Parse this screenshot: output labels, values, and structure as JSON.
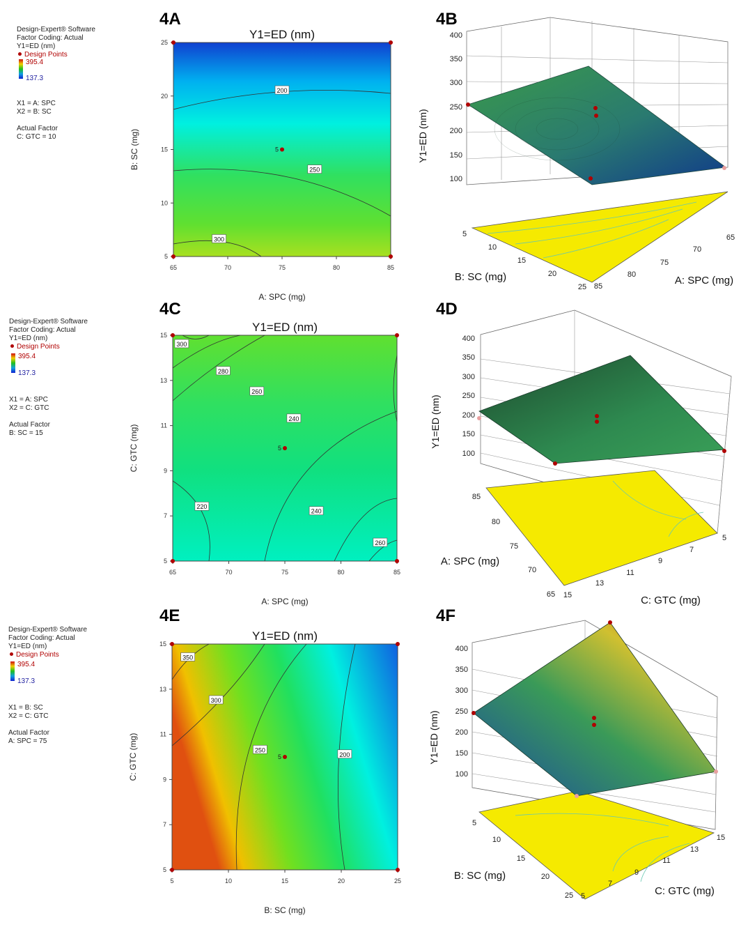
{
  "legends": [
    {
      "software": "Design-Expert® Software",
      "coding": "Factor Coding: Actual",
      "response": "Y1=ED (nm)",
      "design_points": "Design Points",
      "max": "395.4",
      "min": "137.3",
      "x1": "X1 = A: SPC",
      "x2": "X2 = B: SC",
      "actual_factor_title": "Actual Factor",
      "actual_factor": "C: GTC = 10"
    },
    {
      "software": "Design-Expert® Software",
      "coding": "Factor Coding: Actual",
      "response": "Y1=ED (nm)",
      "design_points": "Design Points",
      "max": "395.4",
      "min": "137.3",
      "x1": "X1 = A: SPC",
      "x2": "X2 = C: GTC",
      "actual_factor_title": "Actual Factor",
      "actual_factor": "B: SC = 15"
    },
    {
      "software": "Design-Expert® Software",
      "coding": "Factor Coding: Actual",
      "response": "Y1=ED (nm)",
      "design_points": "Design Points",
      "max": "395.4",
      "min": "137.3",
      "x1": "X1 = B: SC",
      "x2": "X2 = C: GTC",
      "actual_factor_title": "Actual Factor",
      "actual_factor": "A: SPC = 75"
    }
  ],
  "panels": {
    "a": "4A",
    "b": "4B",
    "c": "4C",
    "d": "4D",
    "e": "4E",
    "f": "4F"
  },
  "chart_data": [
    {
      "id": "4A",
      "type": "contour",
      "title": "Y1=ED (nm)",
      "xlabel": "A: SPC (mg)",
      "ylabel": "B: SC (mg)",
      "xlim": [
        65,
        85
      ],
      "ylim": [
        5,
        25
      ],
      "xticks": [
        "65",
        "70",
        "75",
        "80",
        "85"
      ],
      "yticks": [
        "5",
        "10",
        "15",
        "20",
        "25"
      ],
      "contour_labels": [
        {
          "text": "200",
          "x": 75,
          "y": 20.5
        },
        {
          "text": "250",
          "x": 78,
          "y": 13.1
        },
        {
          "text": "300",
          "x": 69.2,
          "y": 6.6
        }
      ],
      "center_label": "5",
      "design_points": [
        [
          65,
          5
        ],
        [
          65,
          25
        ],
        [
          85,
          5
        ],
        [
          85,
          25
        ],
        [
          75,
          15
        ]
      ]
    },
    {
      "id": "4B",
      "type": "surface3d",
      "zlabel": "Y1=ED (nm)",
      "xlabel": "A: SPC (mg)",
      "ylabel": "B: SC (mg)",
      "zticks": [
        "100",
        "150",
        "200",
        "250",
        "300",
        "350",
        "400"
      ],
      "xticks": [
        "85",
        "80",
        "75",
        "70",
        "65"
      ],
      "yticks": [
        "5",
        "10",
        "15",
        "20",
        "25"
      ]
    },
    {
      "id": "4C",
      "type": "contour",
      "title": "Y1=ED (nm)",
      "xlabel": "A: SPC (mg)",
      "ylabel": "C: GTC (mg)",
      "xlim": [
        65,
        85
      ],
      "ylim": [
        5,
        15
      ],
      "xticks": [
        "65",
        "70",
        "75",
        "80",
        "85"
      ],
      "yticks": [
        "5",
        "7",
        "9",
        "11",
        "13",
        "15"
      ],
      "contour_labels": [
        {
          "text": "300",
          "x": 65.8,
          "y": 14.6
        },
        {
          "text": "280",
          "x": 69.5,
          "y": 13.4
        },
        {
          "text": "260",
          "x": 72.5,
          "y": 12.5
        },
        {
          "text": "240",
          "x": 75.8,
          "y": 11.3
        },
        {
          "text": "220",
          "x": 67.6,
          "y": 7.4
        },
        {
          "text": "240",
          "x": 77.8,
          "y": 7.2
        },
        {
          "text": "260",
          "x": 83.5,
          "y": 5.8
        }
      ],
      "center_label": "5",
      "design_points": [
        [
          65,
          5
        ],
        [
          65,
          15
        ],
        [
          85,
          5
        ],
        [
          85,
          15
        ],
        [
          75,
          10
        ]
      ]
    },
    {
      "id": "4D",
      "type": "surface3d",
      "zlabel": "Y1=ED (nm)",
      "xlabel": "C: GTC (mg)",
      "ylabel": "A: SPC (mg)",
      "zticks": [
        "100",
        "150",
        "200",
        "250",
        "300",
        "350",
        "400"
      ],
      "xticks": [
        "15",
        "13",
        "11",
        "9",
        "7",
        "5"
      ],
      "yticks": [
        "85",
        "80",
        "75",
        "70",
        "65"
      ]
    },
    {
      "id": "4E",
      "type": "contour",
      "title": "Y1=ED (nm)",
      "xlabel": "B: SC (mg)",
      "ylabel": "C: GTC (mg)",
      "xlim": [
        5,
        25
      ],
      "ylim": [
        5,
        15
      ],
      "xticks": [
        "5",
        "10",
        "15",
        "20",
        "25"
      ],
      "yticks": [
        "5",
        "7",
        "9",
        "11",
        "13",
        "15"
      ],
      "contour_labels": [
        {
          "text": "350",
          "x": 6.4,
          "y": 14.4
        },
        {
          "text": "300",
          "x": 8.9,
          "y": 12.5
        },
        {
          "text": "250",
          "x": 12.8,
          "y": 10.3
        },
        {
          "text": "200",
          "x": 20.3,
          "y": 10.1
        }
      ],
      "center_label": "5",
      "design_points": [
        [
          5,
          5
        ],
        [
          5,
          15
        ],
        [
          25,
          5
        ],
        [
          25,
          15
        ],
        [
          15,
          10
        ]
      ]
    },
    {
      "id": "4F",
      "type": "surface3d",
      "zlabel": "Y1=ED (nm)",
      "xlabel": "C: GTC (mg)",
      "ylabel": "B: SC (mg)",
      "zticks": [
        "100",
        "150",
        "200",
        "250",
        "300",
        "350",
        "400"
      ],
      "xticks": [
        "5",
        "7",
        "9",
        "11",
        "13",
        "15"
      ],
      "yticks": [
        "5",
        "10",
        "15",
        "20",
        "25"
      ]
    }
  ]
}
